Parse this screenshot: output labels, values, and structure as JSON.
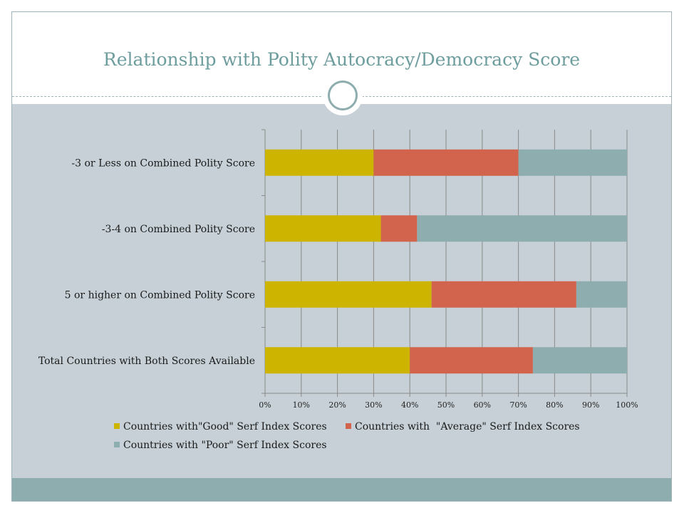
{
  "slide": {
    "title": "Relationship with Polity Autocracy/Democracy Score"
  },
  "colors": {
    "good": "#cdb400",
    "average": "#d2644d",
    "poor": "#8eadae",
    "plot_background": "#c6d0d6",
    "grid": "#8a8a8a"
  },
  "chart_data": {
    "type": "bar",
    "orientation": "horizontal",
    "stacked": "percent",
    "categories": [
      "-3 or Less on Combined Polity Score",
      "-3-4 on Combined Polity Score",
      "5 or higher on Combined Polity Score",
      "Total Countries with Both Scores Available"
    ],
    "series": [
      {
        "name": "Countries with\"Good\" Serf Index Scores",
        "color": "#cdb400",
        "values": [
          30,
          32,
          46,
          40
        ]
      },
      {
        "name": "Countries with  \"Average\" Serf Index Scores",
        "color": "#d2644d",
        "values": [
          40,
          10,
          40,
          34
        ]
      },
      {
        "name": "Countries with \"Poor\" Serf Index Scores",
        "color": "#8eadae",
        "values": [
          30,
          58,
          14,
          26
        ]
      }
    ],
    "xlim": [
      0,
      100
    ],
    "x_ticks": [
      "0%",
      "10%",
      "20%",
      "30%",
      "40%",
      "50%",
      "60%",
      "70%",
      "80%",
      "90%",
      "100%"
    ],
    "grid": true,
    "legend_position": "bottom"
  }
}
